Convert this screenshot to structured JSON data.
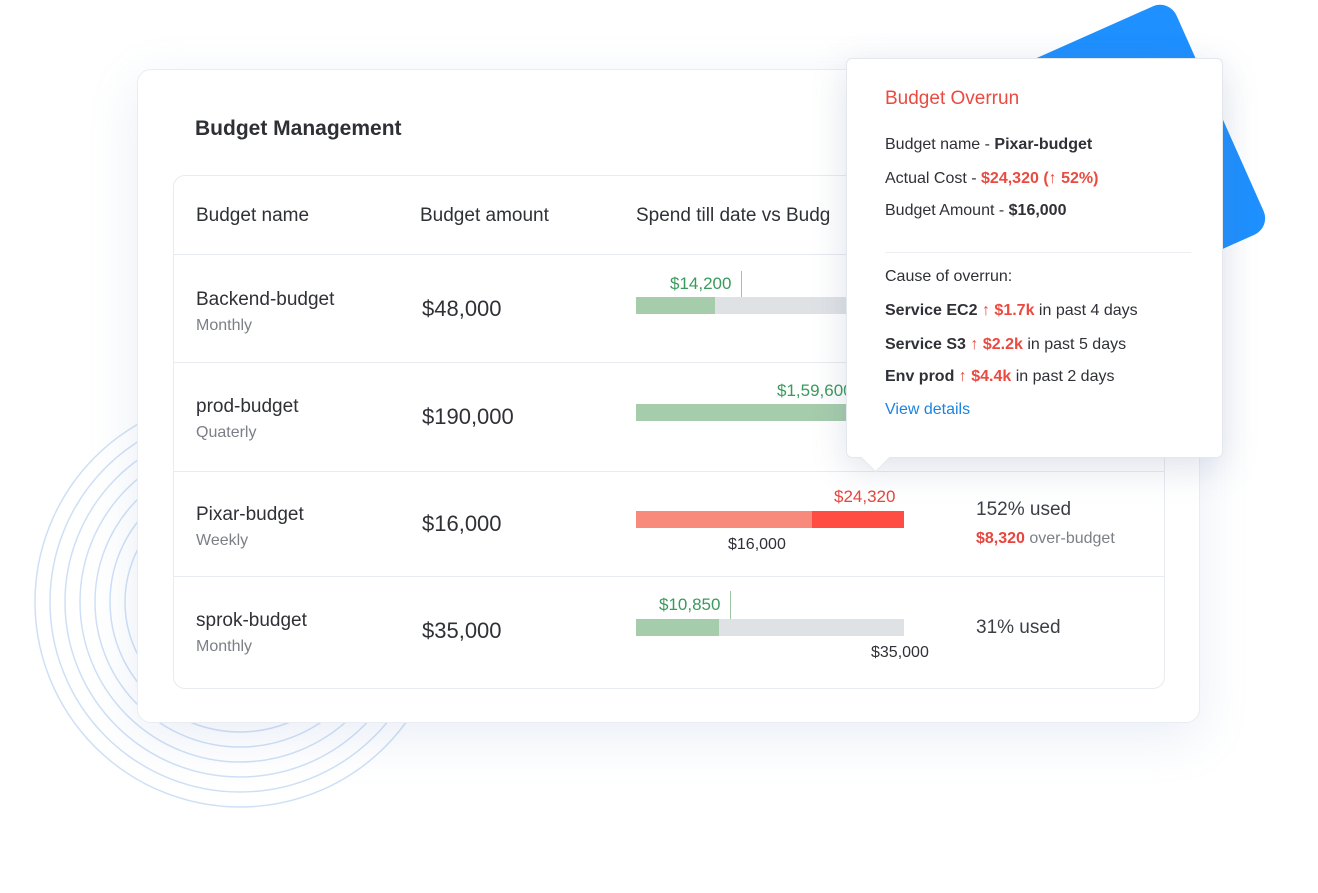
{
  "colors": {
    "accent_blue": "#1e90ff",
    "over_red": "#ff4d44",
    "spend_green": "#a5ccab",
    "link_blue": "#1c84e0"
  },
  "card": {
    "title": "Budget Management"
  },
  "table": {
    "headers": [
      "Budget name",
      "Budget amount",
      "Spend till date vs Budg"
    ],
    "rows": [
      {
        "name": "Backend-budget",
        "period": "Monthly",
        "amount": "$48,000",
        "spend_label": "$14,200",
        "spend_fraction": 0.296
      },
      {
        "name": "prod-budget",
        "period": "Quaterly",
        "amount": "$190,000",
        "spend_label": "$1,59,600",
        "spend_fraction": 0.84
      },
      {
        "name": "Pixar-budget",
        "period": "Weekly",
        "amount": "$16,000",
        "spend_label": "$24,320",
        "budget_label": "$16,000",
        "budget_fraction": 0.658,
        "used": "152% used",
        "over_amount": "$8,320",
        "over_suffix": " over-budget"
      },
      {
        "name": "sprok-budget",
        "period": "Monthly",
        "amount": "$35,000",
        "spend_label": "$10,850",
        "spend_fraction": 0.31,
        "budget_label": "$35,000",
        "used": "31% used"
      }
    ]
  },
  "popup": {
    "title": "Budget Overrun",
    "name_label": "Budget name - ",
    "name_value": "Pixar-budget",
    "cost_label": "Actual Cost - ",
    "cost_value": "$24,320 (",
    "cost_arrow": "↑",
    "cost_pct": " 52%)",
    "amount_label": "Budget Amount - ",
    "amount_value": "$16,000",
    "cause_label": "Cause of overrun:",
    "causes": [
      {
        "service": "Service EC2",
        "arrow": "↑",
        "delta": "$1.7k",
        "period": "in past 4 days"
      },
      {
        "service": "Service S3",
        "arrow": "↑",
        "delta": "$2.2k",
        "period": "in past 5 days"
      },
      {
        "service": "Env prod",
        "arrow": "↑",
        "delta": "$4.4k",
        "period": "in past 2 days"
      }
    ],
    "link": "View details"
  }
}
